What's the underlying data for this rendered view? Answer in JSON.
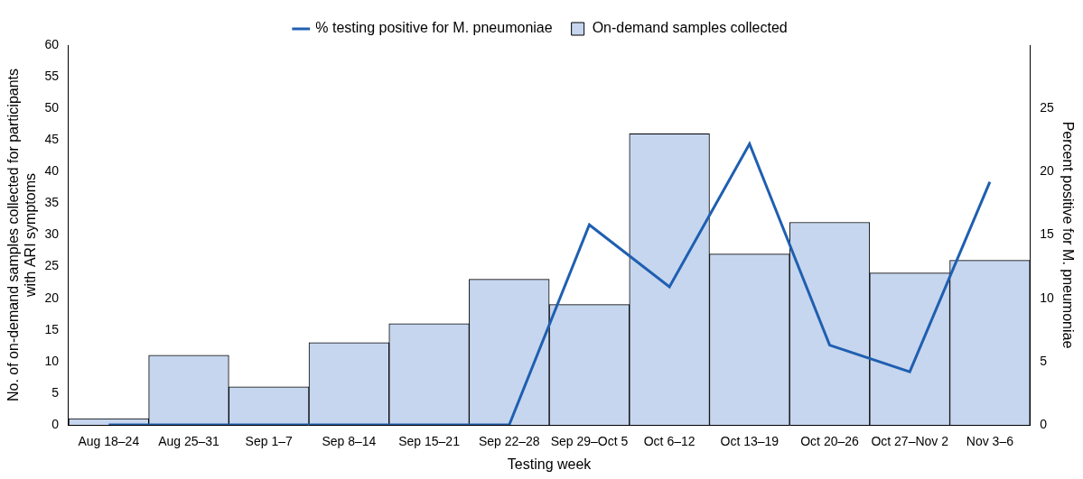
{
  "chart_data": {
    "type": "bar",
    "categories": [
      "Aug 18–24",
      "Aug 25–31",
      "Sep 1–7",
      "Sep 8–14",
      "Sep 15–21",
      "Sep 22–28",
      "Sep 29–Oct 5",
      "Oct 6–12",
      "Oct 13–19",
      "Oct 20–26",
      "Oct 27–Nov 2",
      "Nov 3–6"
    ],
    "series": [
      {
        "name": "On-demand samples collected",
        "type": "bar",
        "color": "#c6d6ef",
        "values": [
          1,
          11,
          6,
          13,
          16,
          23,
          19,
          46,
          27,
          32,
          24,
          26
        ]
      },
      {
        "name": "% testing positive for M. pneumoniae",
        "type": "line",
        "color": "#1f5fb0",
        "axis": "y2",
        "values": [
          0,
          0,
          0,
          0,
          0,
          0,
          15.8,
          10.9,
          22.2,
          6.3,
          4.2,
          19.2
        ]
      }
    ],
    "x_label": "Testing week",
    "y_label": [
      "No. of on-demand samples collected for participants",
      "with ARI symptoms"
    ],
    "y2_label": "Percent positive for M. pneumoniae",
    "ylim": [
      0,
      60
    ],
    "yticks": [
      0,
      5,
      10,
      15,
      20,
      25,
      30,
      35,
      40,
      45,
      50,
      55,
      60
    ],
    "y2lim": [
      0,
      30
    ],
    "y2ticks": [
      0,
      5,
      10,
      15,
      20,
      25
    ],
    "grid": false,
    "legend": "top"
  }
}
